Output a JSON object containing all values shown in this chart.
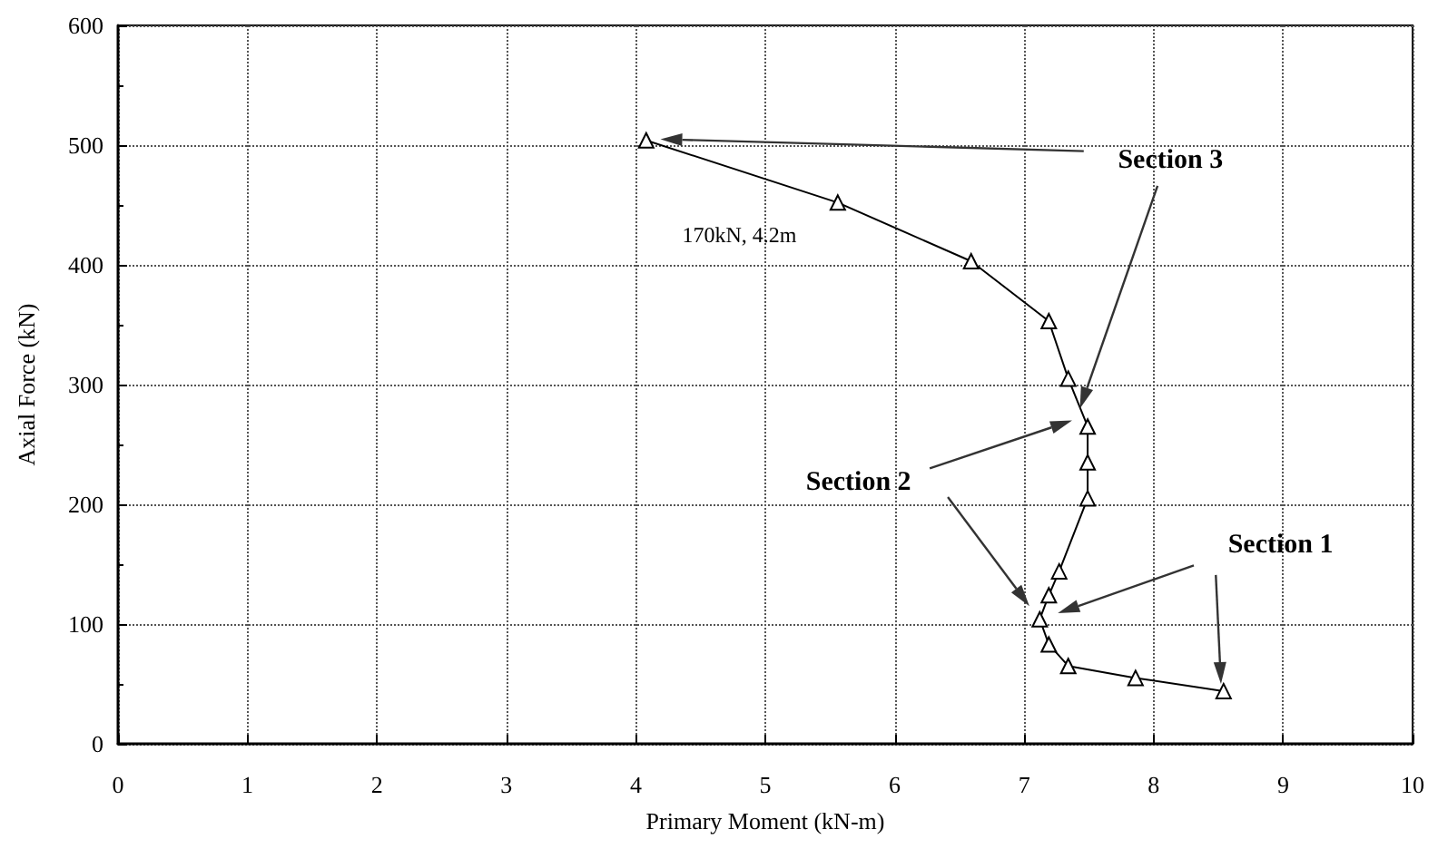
{
  "chart_data": {
    "type": "line",
    "xlabel": "Primary Moment (kN-m)",
    "ylabel": "Axial Force (kN)",
    "x": [
      4.08,
      5.56,
      6.59,
      7.19,
      7.34,
      7.49,
      7.49,
      7.49,
      7.27,
      7.19,
      7.12,
      7.19,
      7.34,
      7.86,
      8.54
    ],
    "values": [
      504,
      452,
      403,
      353,
      305,
      265,
      235,
      205,
      144,
      124,
      104,
      83,
      65,
      55,
      44
    ],
    "color": "#000000",
    "marker": "triangle",
    "line_style": "solid",
    "xlim": [
      0,
      10
    ],
    "ylim": [
      0,
      600
    ],
    "xticks": [
      0,
      1,
      2,
      3,
      4,
      5,
      6,
      7,
      8,
      9,
      10
    ],
    "yticks": [
      0,
      100,
      200,
      300,
      400,
      500,
      600
    ],
    "grid": true,
    "annotations": [
      "170kN, 4.2m",
      "Section 3",
      "Section 2",
      "Section 1"
    ]
  }
}
